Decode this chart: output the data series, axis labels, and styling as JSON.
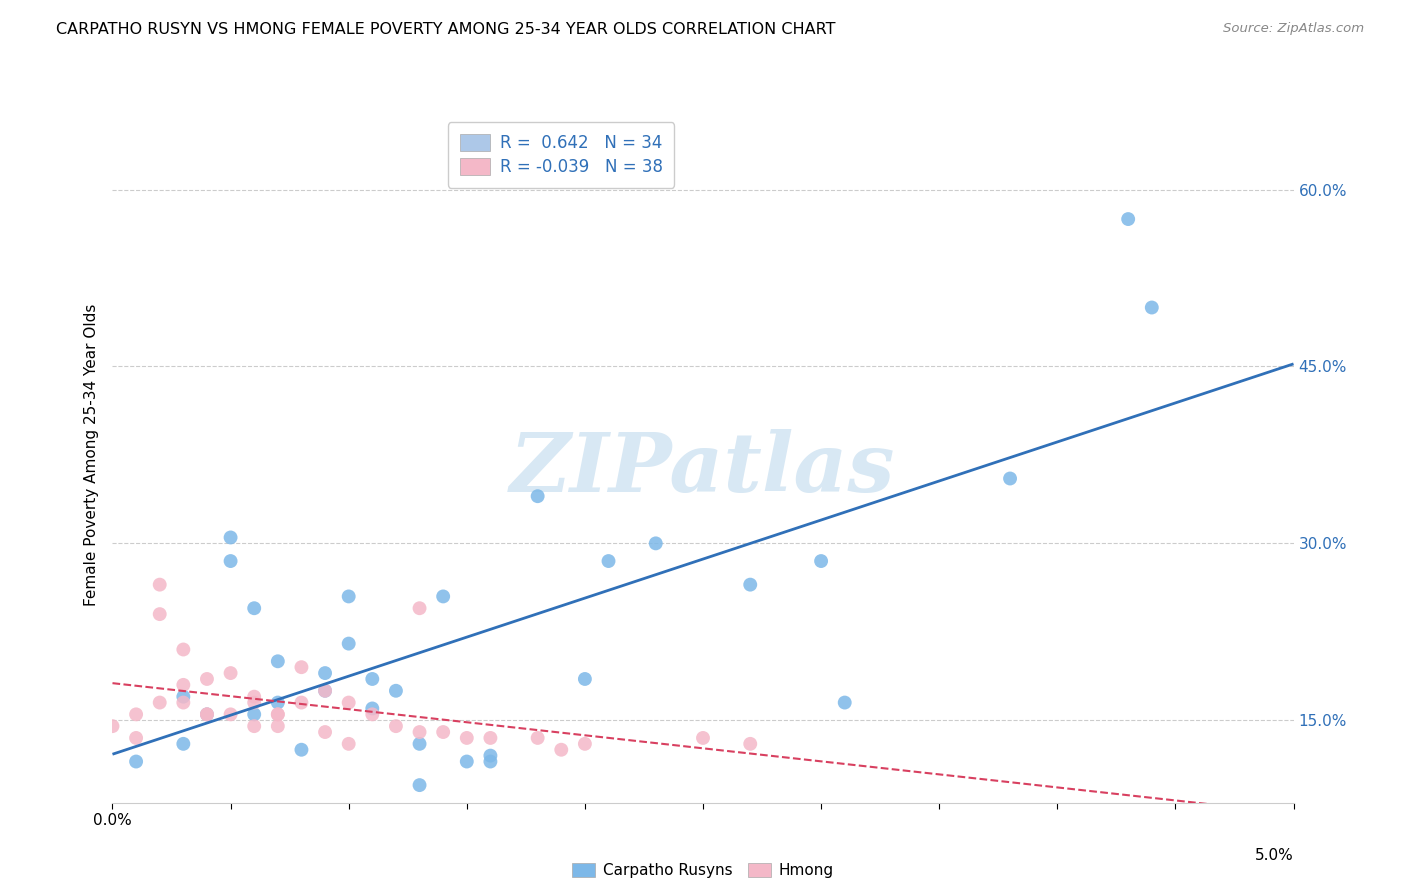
{
  "title": "CARPATHO RUSYN VS HMONG FEMALE POVERTY AMONG 25-34 YEAR OLDS CORRELATION CHART",
  "source": "Source: ZipAtlas.com",
  "ylabel": "Female Poverty Among 25-34 Year Olds",
  "xmin": 0.0,
  "xmax": 0.05,
  "ymin": 0.08,
  "ymax": 0.67,
  "yticks": [
    0.15,
    0.3,
    0.45,
    0.6
  ],
  "ytick_labels": [
    "15.0%",
    "30.0%",
    "45.0%",
    "60.0%"
  ],
  "xtick_positions": [
    0.0,
    0.005,
    0.01,
    0.015,
    0.02,
    0.025,
    0.03,
    0.035,
    0.04,
    0.045,
    0.05
  ],
  "carpatho_color": "#7db8e8",
  "hmong_color": "#f4b8c8",
  "trend_carpatho_color": "#3070b8",
  "trend_hmong_color": "#d84060",
  "legend_patch_carpatho": "#adc8e8",
  "legend_patch_hmong": "#f4b8c8",
  "legend_text_color": "#3070b8",
  "watermark_text": "ZIPatlas",
  "watermark_color": "#d8e8f4",
  "carpatho_R": 0.642,
  "carpatho_N": 34,
  "hmong_R": -0.039,
  "hmong_N": 38,
  "carpatho_x": [
    0.001,
    0.003,
    0.003,
    0.004,
    0.005,
    0.005,
    0.006,
    0.006,
    0.007,
    0.007,
    0.008,
    0.009,
    0.009,
    0.01,
    0.01,
    0.011,
    0.011,
    0.012,
    0.013,
    0.013,
    0.014,
    0.015,
    0.016,
    0.016,
    0.018,
    0.02,
    0.021,
    0.023,
    0.027,
    0.03,
    0.031,
    0.038,
    0.043,
    0.044
  ],
  "carpatho_y": [
    0.115,
    0.17,
    0.13,
    0.155,
    0.305,
    0.285,
    0.245,
    0.155,
    0.2,
    0.165,
    0.125,
    0.175,
    0.19,
    0.255,
    0.215,
    0.185,
    0.16,
    0.175,
    0.13,
    0.095,
    0.255,
    0.115,
    0.12,
    0.115,
    0.34,
    0.185,
    0.285,
    0.3,
    0.265,
    0.285,
    0.165,
    0.355,
    0.575,
    0.5
  ],
  "hmong_x": [
    0.0,
    0.001,
    0.001,
    0.002,
    0.002,
    0.002,
    0.003,
    0.003,
    0.003,
    0.004,
    0.004,
    0.004,
    0.005,
    0.005,
    0.006,
    0.006,
    0.006,
    0.007,
    0.007,
    0.007,
    0.008,
    0.008,
    0.009,
    0.009,
    0.01,
    0.01,
    0.011,
    0.012,
    0.013,
    0.013,
    0.014,
    0.015,
    0.016,
    0.018,
    0.019,
    0.02,
    0.025,
    0.027
  ],
  "hmong_y": [
    0.145,
    0.135,
    0.155,
    0.265,
    0.24,
    0.165,
    0.18,
    0.21,
    0.165,
    0.155,
    0.155,
    0.185,
    0.155,
    0.19,
    0.165,
    0.17,
    0.145,
    0.155,
    0.155,
    0.145,
    0.165,
    0.195,
    0.175,
    0.14,
    0.165,
    0.13,
    0.155,
    0.145,
    0.14,
    0.245,
    0.14,
    0.135,
    0.135,
    0.135,
    0.125,
    0.13,
    0.135,
    0.13
  ],
  "grid_color": "#cccccc",
  "spine_color": "#cccccc",
  "bg_color": "#ffffff"
}
